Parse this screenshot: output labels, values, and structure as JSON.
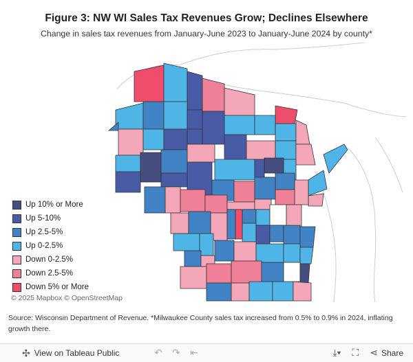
{
  "title": "Figure 3: NW WI Sales Tax Revenues Grow; Declines Elsewhere",
  "subtitle": "Change in sales tax revenues from January-June 2023 to January-June 2024 by county*",
  "legend": {
    "items": [
      {
        "label": "Up 10% or More",
        "color": "#464d7f"
      },
      {
        "label": "Up 5-10%",
        "color": "#4a5ba5"
      },
      {
        "label": "Up 2.5-5%",
        "color": "#4183c4"
      },
      {
        "label": "Up 0-2.5%",
        "color": "#4fb5e6"
      },
      {
        "label": "Down 0-2.5%",
        "color": "#f4a7b9"
      },
      {
        "label": "Down 2.5-5%",
        "color": "#f07f98"
      },
      {
        "label": "Down 5% or More",
        "color": "#ee4e6c"
      }
    ]
  },
  "attribution": "© 2025 Mapbox  © OpenStreetMap",
  "source_note": "Source: Wisconsin Department of Revenue. *Milwaukee County sales tax increased from 0.5% to 0.9% in 2024, inflating growth there.",
  "toolbar": {
    "view_label": "View on Tableau Public",
    "share_label": "Share"
  },
  "colors": {
    "up10": "#464d7f",
    "up5": "#4a5ba5",
    "up25": "#4183c4",
    "up0": "#4fb5e6",
    "dn0": "#f4a7b9",
    "dn25": "#f07f98",
    "dn5": "#ee4e6c",
    "none": "#ffffff"
  }
}
